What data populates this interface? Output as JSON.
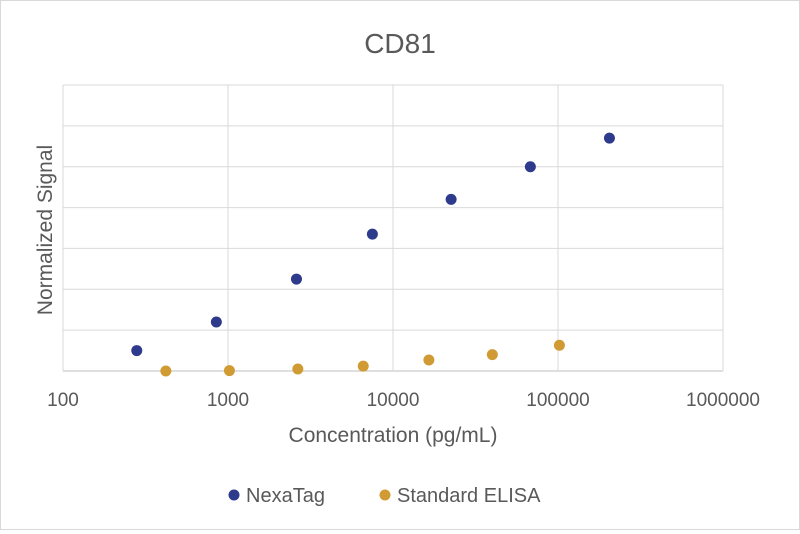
{
  "chart_data": {
    "type": "scatter",
    "title": "CD81",
    "xlabel": "Concentration (pg/mL)",
    "ylabel": "Normalized Signal",
    "x_scale": "log",
    "xlim": [
      100,
      1000000
    ],
    "ylim": [
      0,
      7
    ],
    "x_ticks": [
      "100",
      "1000",
      "10000",
      "100000",
      "1000000"
    ],
    "y_tick_labels_shown": false,
    "grid": true,
    "legend_position": "bottom",
    "series": [
      {
        "name": "NexaTag",
        "color": "#2e3a8c",
        "points": [
          {
            "x": 280,
            "y": 0.5
          },
          {
            "x": 850,
            "y": 1.2
          },
          {
            "x": 2600,
            "y": 2.25
          },
          {
            "x": 7500,
            "y": 3.35
          },
          {
            "x": 22500,
            "y": 4.2
          },
          {
            "x": 68000,
            "y": 5.0
          },
          {
            "x": 205000,
            "y": 5.7
          }
        ]
      },
      {
        "name": "Standard ELISA",
        "color": "#d19b33",
        "points": [
          {
            "x": 420,
            "y": 0.0
          },
          {
            "x": 1020,
            "y": 0.01
          },
          {
            "x": 2650,
            "y": 0.05
          },
          {
            "x": 6600,
            "y": 0.12
          },
          {
            "x": 16500,
            "y": 0.27
          },
          {
            "x": 40000,
            "y": 0.4
          },
          {
            "x": 102000,
            "y": 0.63
          }
        ]
      }
    ]
  }
}
